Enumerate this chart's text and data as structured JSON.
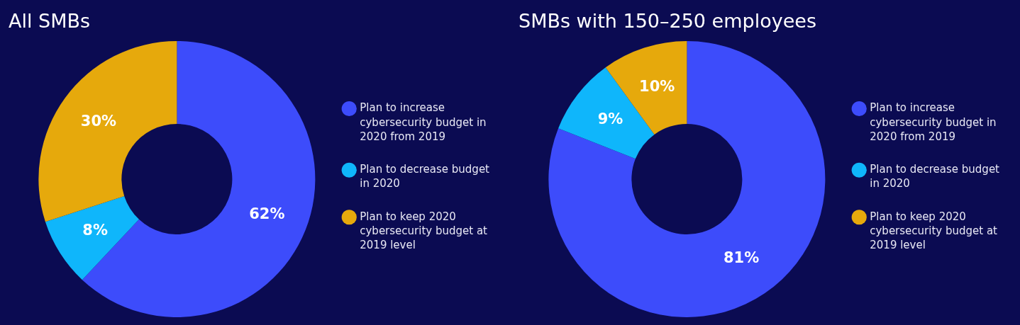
{
  "chart_data": [
    {
      "type": "donut",
      "title": "All SMBs",
      "categories": [
        "Plan to increase cybersecurity budget in 2020 from 2019",
        "Plan to decrease budget in 2020",
        "Plan to keep 2020 cybersecurity budget at 2019 level"
      ],
      "values": [
        62,
        8,
        30
      ],
      "colors": [
        "#3d4cfb",
        "#0fb6fb",
        "#e6a90c"
      ],
      "value_labels": [
        "62%",
        "8%",
        "30%"
      ],
      "legend": "right"
    },
    {
      "type": "donut",
      "title": "SMBs with 150–250 employees",
      "categories": [
        "Plan to increase cybersecurity budget in 2020 from 2019",
        "Plan to decrease budget in 2020",
        "Plan to keep 2020 cybersecurity budget at 2019 level"
      ],
      "values": [
        81,
        9,
        10
      ],
      "colors": [
        "#3d4cfb",
        "#0fb6fb",
        "#e6a90c"
      ],
      "value_labels": [
        "81%",
        "9%",
        "10%"
      ],
      "legend": "right"
    }
  ]
}
